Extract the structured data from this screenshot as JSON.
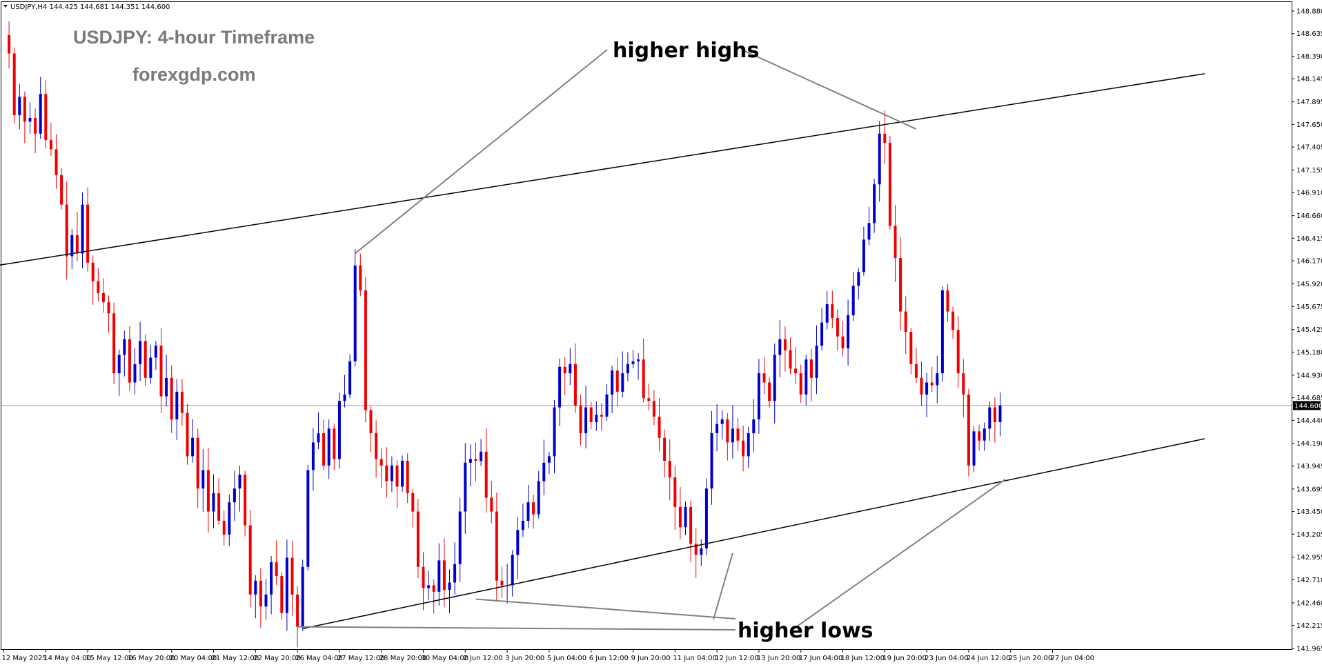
{
  "header": {
    "symbol_line": "USDJPY,H4  144.425 144.681 144.351 144.600"
  },
  "watermark": {
    "title": "USDJPY: 4-hour Timeframe",
    "site": "forexgdp.com"
  },
  "annotations": {
    "highs_label": "higher highs",
    "lows_label": "higher lows"
  },
  "colors": {
    "bull": "#0000cc",
    "bear": "#ee0000",
    "trendline": "#000000",
    "pointer": "#808080",
    "current_price_line": "#808080"
  },
  "chart_data": {
    "type": "candlestick",
    "symbol": "USDJPY",
    "timeframe": "H4",
    "current_price": 144.6,
    "ylim": [
      141.965,
      148.88
    ],
    "y_ticks": [
      "148.880",
      "148.635",
      "148.390",
      "148.145",
      "147.895",
      "147.650",
      "147.405",
      "147.155",
      "146.910",
      "146.660",
      "146.415",
      "146.170",
      "145.920",
      "145.675",
      "145.425",
      "145.180",
      "144.930",
      "144.685",
      "144.440",
      "144.190",
      "143.945",
      "143.695",
      "143.450",
      "143.205",
      "142.955",
      "142.710",
      "142.460",
      "142.215",
      "141.965"
    ],
    "x_ticks": [
      {
        "label": "12 May 2025",
        "idx": 0
      },
      {
        "label": "14 May 04:00",
        "idx": 8
      },
      {
        "label": "15 May 12:00",
        "idx": 16
      },
      {
        "label": "16 May 20:00",
        "idx": 24
      },
      {
        "label": "20 May 04:00",
        "idx": 32
      },
      {
        "label": "21 May 12:00",
        "idx": 40
      },
      {
        "label": "22 May 20:00",
        "idx": 48
      },
      {
        "label": "26 May 04:00",
        "idx": 56
      },
      {
        "label": "27 May 12:00",
        "idx": 64
      },
      {
        "label": "28 May 20:00",
        "idx": 72
      },
      {
        "label": "30 May 04:00",
        "idx": 80
      },
      {
        "label": "2 Jun 12:00",
        "idx": 88
      },
      {
        "label": "3 Jun 20:00",
        "idx": 96
      },
      {
        "label": "5 Jun 04:00",
        "idx": 104
      },
      {
        "label": "6 Jun 12:00",
        "idx": 112
      },
      {
        "label": "9 Jun 20:00",
        "idx": 120
      },
      {
        "label": "11 Jun 04:00",
        "idx": 128
      },
      {
        "label": "12 Jun 12:00",
        "idx": 136
      },
      {
        "label": "13 Jun 20:00",
        "idx": 144
      },
      {
        "label": "17 Jun 04:00",
        "idx": 152
      },
      {
        "label": "18 Jun 12:00",
        "idx": 160
      },
      {
        "label": "19 Jun 20:00",
        "idx": 168
      },
      {
        "label": "23 Jun 04:00",
        "idx": 176
      },
      {
        "label": "24 Jun 12:00",
        "idx": 184
      },
      {
        "label": "25 Jun 20:00",
        "idx": 192
      },
      {
        "label": "27 Jun 04:00",
        "idx": 200
      }
    ],
    "closes": [
      148.62,
      148.42,
      147.75,
      147.95,
      147.68,
      147.72,
      147.55,
      147.98,
      147.48,
      147.38,
      147.1,
      146.78,
      146.22,
      146.45,
      146.25,
      146.78,
      146.15,
      145.95,
      145.82,
      145.72,
      145.6,
      144.95,
      145.15,
      145.32,
      144.85,
      145.05,
      145.3,
      144.9,
      145.12,
      145.25,
      144.7,
      144.9,
      144.45,
      144.75,
      144.52,
      144.05,
      144.25,
      143.7,
      143.9,
      143.45,
      143.65,
      143.35,
      143.2,
      143.55,
      143.7,
      143.85,
      143.3,
      142.55,
      142.7,
      142.42,
      142.55,
      142.9,
      142.75,
      142.35,
      142.95,
      142.55,
      142.2,
      142.85,
      143.9,
      144.2,
      144.3,
      143.95,
      144.35,
      144.02,
      144.65,
      144.72,
      145.08,
      146.12,
      145.85,
      144.55,
      144.3,
      144.02,
      143.95,
      143.78,
      143.95,
      143.72,
      144.0,
      143.65,
      143.45,
      142.85,
      142.62,
      142.65,
      142.58,
      142.92,
      142.6,
      142.68,
      142.88,
      143.45,
      143.98,
      144.02,
      144.0,
      144.1,
      143.6,
      143.45,
      142.7,
      142.65,
      142.65,
      142.98,
      143.25,
      143.35,
      143.55,
      143.42,
      143.78,
      143.98,
      144.05,
      144.58,
      145.02,
      144.95,
      145.05,
      144.6,
      144.3,
      144.58,
      144.42,
      144.5,
      144.48,
      144.72,
      144.98,
      144.75,
      144.95,
      145.05,
      145.08,
      145.1,
      144.68,
      144.65,
      144.48,
      144.25,
      144.0,
      143.82,
      143.5,
      143.28,
      143.5,
      143.1,
      142.98,
      143.05,
      143.7,
      144.3,
      144.4,
      144.45,
      144.2,
      144.35,
      144.22,
      144.05,
      144.3,
      144.45,
      144.95,
      144.85,
      144.65,
      145.15,
      145.32,
      145.2,
      145.0,
      144.95,
      144.72,
      145.1,
      144.9,
      145.25,
      145.5,
      145.7,
      145.55,
      145.35,
      145.22,
      145.58,
      145.9,
      146.05,
      146.4,
      146.58,
      147.0,
      147.55,
      147.45,
      146.55,
      146.2,
      145.62,
      145.4,
      145.05,
      144.9,
      144.72,
      144.85,
      144.82,
      144.95,
      145.85,
      145.62,
      145.42,
      144.95,
      144.72,
      143.95,
      144.32,
      144.22,
      144.35,
      144.58,
      144.42,
      144.6
    ],
    "trendlines": [
      {
        "role": "resistance",
        "from": {
          "idx": -30,
          "price": 145.86
        },
        "to": {
          "idx": 229,
          "price": 148.2
        }
      },
      {
        "role": "support",
        "from": {
          "idx": 57,
          "price": 142.18
        },
        "to": {
          "idx": 229,
          "price": 144.24
        }
      }
    ],
    "annotation_targets": {
      "higher_highs": [
        {
          "idx": 67,
          "price": 146.25
        },
        {
          "idx": 174,
          "price": 147.6
        }
      ],
      "higher_lows": [
        {
          "idx": 56,
          "price": 142.2
        },
        {
          "idx": 90,
          "price": 142.5
        },
        {
          "idx": 139,
          "price": 143.0
        },
        {
          "idx": 191,
          "price": 143.8
        }
      ]
    }
  }
}
